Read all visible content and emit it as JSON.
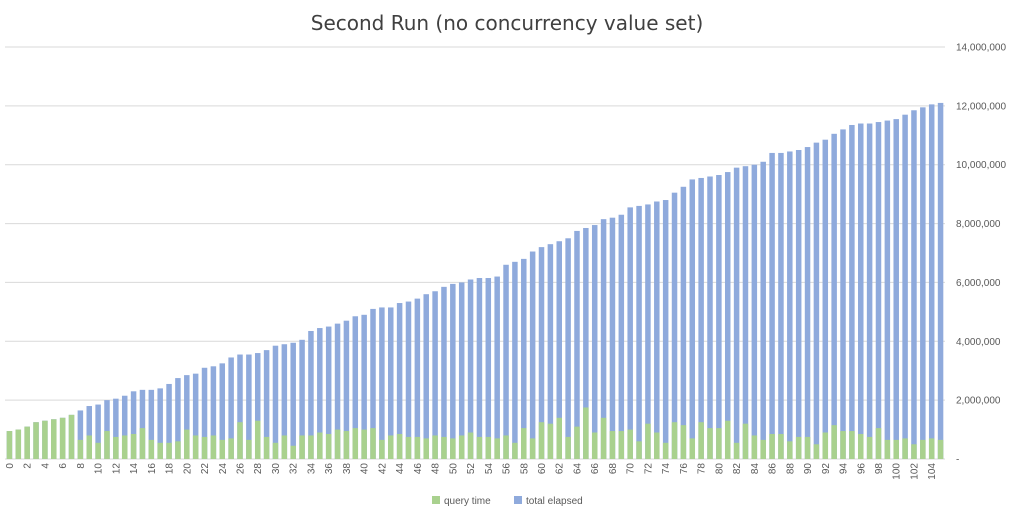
{
  "chart_data": {
    "type": "bar",
    "stacking": "overlap",
    "title": "Second Run (no concurrency value set)",
    "ylim": [
      0,
      14000000
    ],
    "yticks": [
      0,
      2000000,
      4000000,
      6000000,
      8000000,
      10000000,
      12000000,
      14000000
    ],
    "ytick_labels": [
      "-",
      "2,000,000",
      "4,000,000",
      "6,000,000",
      "8,000,000",
      "10,000,000",
      "12,000,000",
      "14,000,000"
    ],
    "y_axis_side": "right",
    "grid": true,
    "legend_position": "bottom",
    "x_tick_step": 2,
    "categories": [
      0,
      1,
      2,
      3,
      4,
      5,
      6,
      7,
      8,
      9,
      10,
      11,
      12,
      13,
      14,
      15,
      16,
      17,
      18,
      19,
      20,
      21,
      22,
      23,
      24,
      25,
      26,
      27,
      28,
      29,
      30,
      31,
      32,
      33,
      34,
      35,
      36,
      37,
      38,
      39,
      40,
      41,
      42,
      43,
      44,
      45,
      46,
      47,
      48,
      49,
      50,
      51,
      52,
      53,
      54,
      55,
      56,
      57,
      58,
      59,
      60,
      61,
      62,
      63,
      64,
      65,
      66,
      67,
      68,
      69,
      70,
      71,
      72,
      73,
      74,
      75,
      76,
      77,
      78,
      79,
      80,
      81,
      82,
      83,
      84,
      85,
      86,
      87,
      88,
      89,
      90,
      91,
      92,
      93,
      94,
      95,
      96,
      97,
      98,
      99,
      100,
      101,
      102,
      103,
      104,
      105
    ],
    "series": [
      {
        "name": "total elapsed",
        "color": "#8faadc",
        "values": [
          950000,
          1000000,
          1100000,
          1250000,
          1300000,
          1350000,
          1400000,
          1500000,
          1650000,
          1800000,
          1850000,
          2000000,
          2050000,
          2150000,
          2300000,
          2350000,
          2350000,
          2400000,
          2550000,
          2750000,
          2850000,
          2900000,
          3100000,
          3150000,
          3250000,
          3450000,
          3550000,
          3550000,
          3600000,
          3700000,
          3850000,
          3900000,
          3950000,
          4050000,
          4350000,
          4450000,
          4500000,
          4600000,
          4700000,
          4850000,
          4900000,
          5100000,
          5150000,
          5150000,
          5300000,
          5350000,
          5450000,
          5600000,
          5700000,
          5850000,
          5950000,
          6000000,
          6100000,
          6150000,
          6150000,
          6200000,
          6600000,
          6700000,
          6800000,
          7050000,
          7200000,
          7300000,
          7400000,
          7500000,
          7750000,
          7850000,
          7950000,
          8150000,
          8200000,
          8300000,
          8550000,
          8600000,
          8650000,
          8750000,
          8800000,
          9050000,
          9250000,
          9500000,
          9550000,
          9600000,
          9650000,
          9750000,
          9900000,
          9950000,
          10000000,
          10100000,
          10400000,
          10400000,
          10450000,
          10500000,
          10600000,
          10750000,
          10850000,
          11050000,
          11200000,
          11350000,
          11400000,
          11400000,
          11450000,
          11500000,
          11550000,
          11700000,
          11850000,
          11950000,
          12050000,
          12100000
        ]
      },
      {
        "name": "query time",
        "color": "#a9d18e",
        "values": [
          950000,
          1000000,
          1100000,
          1250000,
          1300000,
          1350000,
          1400000,
          1500000,
          650000,
          800000,
          550000,
          950000,
          750000,
          800000,
          850000,
          1050000,
          650000,
          550000,
          550000,
          600000,
          1000000,
          800000,
          750000,
          800000,
          650000,
          700000,
          1250000,
          650000,
          1300000,
          750000,
          550000,
          800000,
          450000,
          800000,
          800000,
          900000,
          850000,
          1000000,
          950000,
          1050000,
          1000000,
          1050000,
          650000,
          800000,
          850000,
          750000,
          750000,
          700000,
          800000,
          750000,
          700000,
          800000,
          900000,
          750000,
          750000,
          700000,
          800000,
          550000,
          1050000,
          700000,
          1250000,
          1200000,
          1400000,
          750000,
          1100000,
          1750000,
          900000,
          1400000,
          950000,
          950000,
          1000000,
          600000,
          1200000,
          900000,
          550000,
          1250000,
          1150000,
          700000,
          1250000,
          1050000,
          1050000,
          1300000,
          550000,
          1200000,
          800000,
          650000,
          850000,
          850000,
          600000,
          750000,
          750000,
          500000,
          900000,
          1150000,
          950000,
          950000,
          850000,
          750000,
          1050000,
          650000,
          650000,
          700000,
          500000,
          650000,
          700000,
          650000
        ]
      }
    ],
    "legend": [
      "query time",
      "total elapsed"
    ]
  }
}
